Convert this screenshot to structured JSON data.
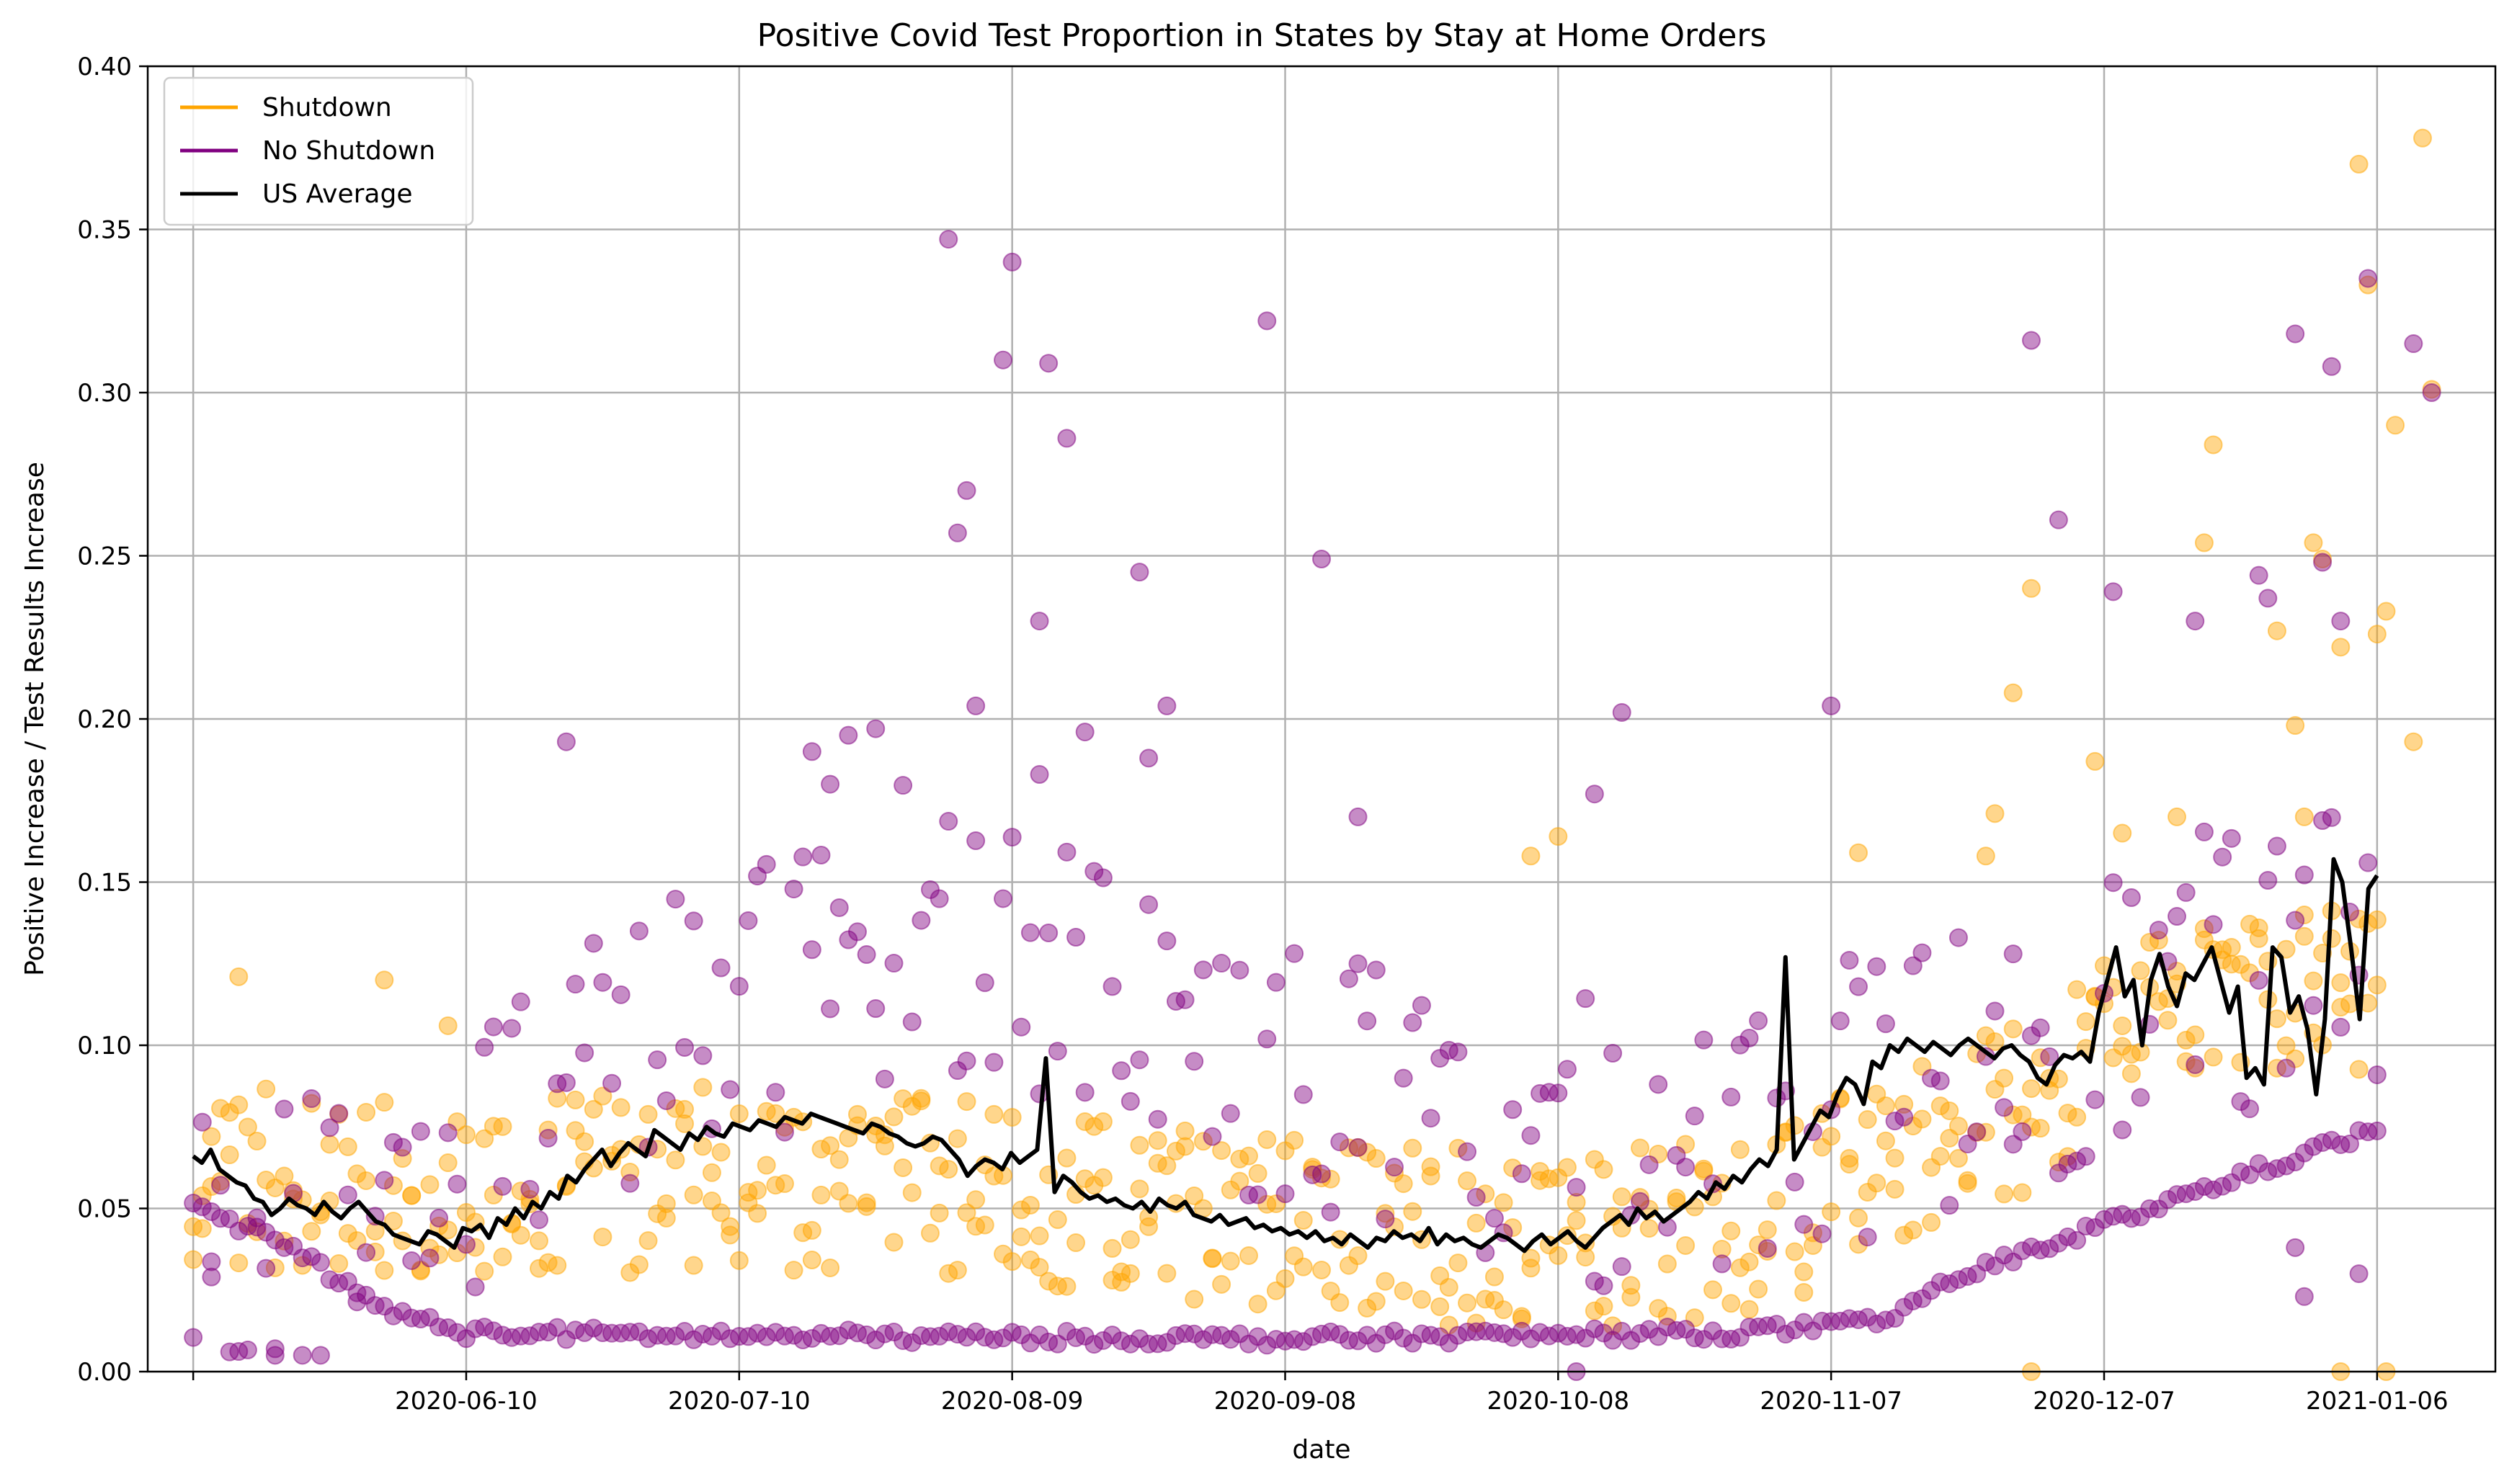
{
  "chart_data": {
    "type": "scatter",
    "title": "Positive Covid Test Proportion in States by Stay at Home Orders",
    "xlabel": "date",
    "ylabel": "Positive Increase / Test Results Increase",
    "xlim": [
      "2020-05-06",
      "2021-01-19"
    ],
    "ylim": [
      0,
      0.4
    ],
    "x_ticks": [
      "2020-05-11",
      "2020-06-10",
      "2020-07-10",
      "2020-08-09",
      "2020-09-08",
      "2020-10-08",
      "2020-11-07",
      "2020-12-07",
      "2021-01-06"
    ],
    "x_tick_labels": [
      "",
      "2020-06-10",
      "2020-07-10",
      "2020-08-09",
      "2020-09-08",
      "2020-10-08",
      "2020-11-07",
      "2020-12-07",
      "2021-01-06"
    ],
    "y_ticks": [
      0.0,
      0.05,
      0.1,
      0.15,
      0.2,
      0.25,
      0.3,
      0.35,
      0.4
    ],
    "y_tick_labels": [
      "0.00",
      "0.05",
      "0.10",
      "0.15",
      "0.20",
      "0.25",
      "0.30",
      "0.35",
      "0.40"
    ],
    "grid": true,
    "legend_position": "top-left",
    "x_start": "2020-05-11",
    "x_end": "2021-01-06",
    "series": [
      {
        "name": "Shutdown",
        "kind": "scatter",
        "color": "#FFA500",
        "anchors": [
          [
            0,
            0.06
          ],
          [
            30,
            0.055
          ],
          [
            60,
            0.06
          ],
          [
            90,
            0.055
          ],
          [
            120,
            0.045
          ],
          [
            150,
            0.04
          ],
          [
            170,
            0.045
          ],
          [
            180,
            0.055
          ],
          [
            200,
            0.08
          ],
          [
            210,
            0.1
          ],
          [
            220,
            0.11
          ],
          [
            240,
            0.12
          ]
        ],
        "spread": 0.028,
        "highlights": [
          [
            5,
            0.121
          ],
          [
            21,
            0.12
          ],
          [
            28,
            0.106
          ],
          [
            150,
            0.164
          ],
          [
            147,
            0.158
          ],
          [
            183,
            0.159
          ],
          [
            197,
            0.158
          ],
          [
            198,
            0.171
          ],
          [
            200,
            0.208
          ],
          [
            202,
            0.24
          ],
          [
            209,
            0.187
          ],
          [
            212,
            0.165
          ],
          [
            218,
            0.17
          ],
          [
            221,
            0.254
          ],
          [
            222,
            0.284
          ],
          [
            229,
            0.227
          ],
          [
            231,
            0.198
          ],
          [
            233,
            0.254
          ],
          [
            234,
            0.249
          ],
          [
            236,
            0.222
          ],
          [
            238,
            0.37
          ],
          [
            239,
            0.333
          ],
          [
            240,
            0.226
          ],
          [
            241,
            0.233
          ],
          [
            242,
            0.29
          ],
          [
            244,
            0.193
          ],
          [
            245,
            0.378
          ],
          [
            246,
            0.301
          ],
          [
            202,
            0.0
          ],
          [
            236,
            0.0
          ],
          [
            241,
            0.0
          ],
          [
            232,
            0.17
          ]
        ]
      },
      {
        "name": "No Shutdown",
        "kind": "scatter",
        "color": "#800080",
        "anchors": [
          [
            0,
            0.05
          ],
          [
            20,
            0.04
          ],
          [
            40,
            0.09
          ],
          [
            60,
            0.11
          ],
          [
            80,
            0.14
          ],
          [
            100,
            0.12
          ],
          [
            120,
            0.09
          ],
          [
            140,
            0.07
          ],
          [
            160,
            0.07
          ],
          [
            180,
            0.08
          ],
          [
            200,
            0.1
          ],
          [
            220,
            0.12
          ],
          [
            246,
            0.13
          ]
        ],
        "spread": 0.045,
        "low_anchors": [
          [
            0,
            0.05
          ],
          [
            10,
            0.04
          ],
          [
            20,
            0.02
          ],
          [
            30,
            0.012
          ],
          [
            60,
            0.011
          ],
          [
            120,
            0.01
          ],
          [
            170,
            0.012
          ],
          [
            185,
            0.015
          ],
          [
            195,
            0.03
          ],
          [
            205,
            0.04
          ],
          [
            215,
            0.05
          ],
          [
            225,
            0.06
          ],
          [
            246,
            0.08
          ]
        ],
        "highlights": [
          [
            2,
            0.029
          ],
          [
            9,
            0.007
          ],
          [
            41,
            0.193
          ],
          [
            68,
            0.19
          ],
          [
            75,
            0.197
          ],
          [
            72,
            0.195
          ],
          [
            70,
            0.18
          ],
          [
            84,
            0.257
          ],
          [
            85,
            0.27
          ],
          [
            86,
            0.204
          ],
          [
            83,
            0.347
          ],
          [
            90,
            0.34
          ],
          [
            89,
            0.31
          ],
          [
            94,
            0.309
          ],
          [
            93,
            0.23
          ],
          [
            96,
            0.286
          ],
          [
            98,
            0.196
          ],
          [
            107,
            0.204
          ],
          [
            105,
            0.188
          ],
          [
            104,
            0.245
          ],
          [
            118,
            0.322
          ],
          [
            124,
            0.249
          ],
          [
            128,
            0.17
          ],
          [
            157,
            0.202
          ],
          [
            200,
            0.128
          ],
          [
            202,
            0.316
          ],
          [
            205,
            0.261
          ],
          [
            211,
            0.239
          ],
          [
            220,
            0.23
          ],
          [
            227,
            0.244
          ],
          [
            228,
            0.237
          ],
          [
            231,
            0.318
          ],
          [
            234,
            0.248
          ],
          [
            235,
            0.308
          ],
          [
            236,
            0.23
          ],
          [
            239,
            0.335
          ],
          [
            244,
            0.315
          ],
          [
            246,
            0.3
          ],
          [
            180,
            0.204
          ],
          [
            154,
            0.177
          ],
          [
            128,
            0.125
          ],
          [
            93,
            0.183
          ],
          [
            231,
            0.038
          ],
          [
            232,
            0.023
          ],
          [
            238,
            0.03
          ],
          [
            152,
            0.0
          ]
        ]
      },
      {
        "name": "US Average",
        "kind": "line",
        "color": "#000000",
        "values": [
          0.066,
          0.064,
          0.068,
          0.062,
          0.06,
          0.058,
          0.057,
          0.053,
          0.052,
          0.048,
          0.05,
          0.053,
          0.051,
          0.05,
          0.048,
          0.052,
          0.049,
          0.047,
          0.05,
          0.052,
          0.049,
          0.046,
          0.045,
          0.042,
          0.041,
          0.04,
          0.039,
          0.043,
          0.042,
          0.04,
          0.038,
          0.044,
          0.043,
          0.045,
          0.041,
          0.047,
          0.045,
          0.05,
          0.047,
          0.052,
          0.05,
          0.055,
          0.053,
          0.06,
          0.058,
          0.062,
          0.065,
          0.068,
          0.063,
          0.067,
          0.07,
          0.068,
          0.066,
          0.074,
          0.072,
          0.07,
          0.068,
          0.073,
          0.071,
          0.075,
          0.073,
          0.072,
          0.076,
          0.075,
          0.074,
          0.077,
          0.076,
          0.075,
          0.078,
          0.077,
          0.076,
          0.079,
          0.078,
          0.077,
          0.076,
          0.075,
          0.074,
          0.073,
          0.076,
          0.075,
          0.073,
          0.072,
          0.07,
          0.069,
          0.07,
          0.072,
          0.071,
          0.068,
          0.065,
          0.06,
          0.063,
          0.065,
          0.064,
          0.062,
          0.067,
          0.064,
          0.066,
          0.068,
          0.096,
          0.055,
          0.06,
          0.058,
          0.055,
          0.053,
          0.054,
          0.052,
          0.053,
          0.051,
          0.05,
          0.052,
          0.049,
          0.053,
          0.051,
          0.05,
          0.052,
          0.048,
          0.047,
          0.046,
          0.048,
          0.045,
          0.046,
          0.047,
          0.044,
          0.045,
          0.043,
          0.044,
          0.042,
          0.043,
          0.041,
          0.043,
          0.04,
          0.041,
          0.039,
          0.042,
          0.04,
          0.038,
          0.041,
          0.04,
          0.043,
          0.041,
          0.042,
          0.04,
          0.044,
          0.039,
          0.042,
          0.04,
          0.041,
          0.039,
          0.038,
          0.04,
          0.042,
          0.041,
          0.039,
          0.037,
          0.04,
          0.042,
          0.039,
          0.041,
          0.043,
          0.04,
          0.038,
          0.041,
          0.044,
          0.046,
          0.048,
          0.045,
          0.05,
          0.047,
          0.049,
          0.046,
          0.048,
          0.05,
          0.052,
          0.055,
          0.053,
          0.058,
          0.056,
          0.06,
          0.058,
          0.062,
          0.065,
          0.063,
          0.068,
          0.127,
          0.065,
          0.07,
          0.075,
          0.08,
          0.078,
          0.085,
          0.09,
          0.088,
          0.082,
          0.095,
          0.093,
          0.1,
          0.098,
          0.102,
          0.1,
          0.098,
          0.101,
          0.099,
          0.097,
          0.1,
          0.102,
          0.1,
          0.098,
          0.096,
          0.099,
          0.1,
          0.097,
          0.095,
          0.09,
          0.088,
          0.094,
          0.097,
          0.096,
          0.098,
          0.095,
          0.11,
          0.12,
          0.13,
          0.115,
          0.12,
          0.1,
          0.12,
          0.128,
          0.118,
          0.112,
          0.122,
          0.12,
          0.125,
          0.13,
          0.12,
          0.11,
          0.118,
          0.09,
          0.093,
          0.088,
          0.13,
          0.127,
          0.11,
          0.115,
          0.105,
          0.085,
          0.108,
          0.157,
          0.15,
          0.13,
          0.108,
          0.148,
          0.152
        ]
      }
    ]
  }
}
